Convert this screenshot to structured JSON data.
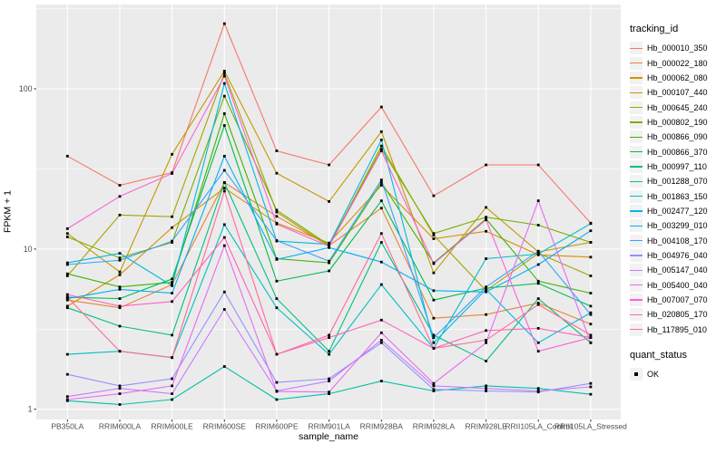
{
  "style": {
    "figure_background": "#FFFFFF",
    "panel_background": "#EBEBEB",
    "gridline_color": "#FFFFFF",
    "axis_text_color": "#4D4D4D",
    "axis_tick_color": "#333333",
    "point_color": "#000000",
    "legend_key_background": "#F2F2F2"
  },
  "chart_data": {
    "type": "line",
    "title": "",
    "xlabel": "sample_name",
    "ylabel": "FPKM + 1",
    "y_scale": "log10",
    "ylim": [
      0.86,
      336
    ],
    "y_ticks": [
      1,
      10,
      100
    ],
    "y_minor_gridlines": [
      3.162,
      31.623,
      316.228
    ],
    "grid": "on",
    "legend_position": "right",
    "point_shape": "filled-square",
    "categories": [
      "PB350LA",
      "RRIM600LA",
      "RRIM600LE",
      "RRIM600SE",
      "RRIM600PE",
      "RRIM901LA",
      "RRIM928BA",
      "RRIM928LA",
      "RRIM928LE",
      "RRII105LA_Control",
      "RRII105LA_Stressed"
    ],
    "series": [
      {
        "name": "Hb_000010_350",
        "color": "#F8766D",
        "values": [
          38,
          25,
          30,
          255,
          41,
          33.5,
          77,
          21.5,
          33.5,
          33.5,
          14.5
        ]
      },
      {
        "name": "Hb_000022_180",
        "color": "#EA8331",
        "values": [
          4.8,
          4.3,
          6.0,
          26,
          16,
          10.5,
          18,
          3.7,
          3.9,
          4.6,
          3.4
        ]
      },
      {
        "name": "Hb_000062_080",
        "color": "#D89000",
        "values": [
          4.4,
          6.9,
          13.6,
          24,
          14.5,
          10.9,
          25,
          11.6,
          12.9,
          9.2,
          8.9
        ]
      },
      {
        "name": "Hb_000107_440",
        "color": "#C09B00",
        "values": [
          12.5,
          7.2,
          39,
          129,
          29.7,
          19.8,
          54,
          7.1,
          18.2,
          9.6,
          11.0
        ]
      },
      {
        "name": "Hb_000645_240",
        "color": "#A3A500",
        "values": [
          6.8,
          16.3,
          15.9,
          125,
          17,
          10.4,
          44,
          12.2,
          5.5,
          9.4,
          6.8
        ]
      },
      {
        "name": "Hb_000802_190",
        "color": "#7CAE00",
        "values": [
          11.9,
          8.8,
          11.0,
          90,
          17.5,
          10.6,
          42,
          12.5,
          15.8,
          14.1,
          11.0
        ]
      },
      {
        "name": "Hb_000866_090",
        "color": "#39B600",
        "values": [
          7.0,
          5.8,
          6.2,
          70,
          8.7,
          8.2,
          26,
          8.2,
          15.4,
          6.3,
          5.3
        ]
      },
      {
        "name": "Hb_000866_370",
        "color": "#00BB4E",
        "values": [
          5.0,
          4.9,
          6.5,
          59,
          6.3,
          7.3,
          20,
          4.8,
          5.7,
          6.1,
          4.4
        ]
      },
      {
        "name": "Hb_000997_110",
        "color": "#00BF7D",
        "values": [
          4.3,
          3.3,
          2.9,
          26,
          4.9,
          2.3,
          11,
          2.9,
          2.0,
          4.9,
          2.6
        ]
      },
      {
        "name": "Hb_001288_070",
        "color": "#00C1A3",
        "values": [
          1.13,
          1.07,
          1.15,
          1.85,
          1.15,
          1.25,
          1.5,
          1.3,
          1.4,
          1.35,
          1.24
        ]
      },
      {
        "name": "Hb_001863_150",
        "color": "#00BFC4",
        "values": [
          2.2,
          2.3,
          2.1,
          14.2,
          4.3,
          2.2,
          6.0,
          2.4,
          8.7,
          9.3,
          14.4
        ]
      },
      {
        "name": "Hb_002477_120",
        "color": "#00BAE0",
        "values": [
          8.2,
          9.4,
          5.9,
          108,
          11.2,
          10.7,
          48,
          2.6,
          5.6,
          2.6,
          4.0
        ]
      },
      {
        "name": "Hb_003299_010",
        "color": "#00B0F6",
        "values": [
          4.9,
          5.6,
          5.3,
          38,
          8.6,
          10.2,
          8.3,
          5.5,
          5.4,
          8.0,
          13.0
        ]
      },
      {
        "name": "Hb_004108_170",
        "color": "#35A2FF",
        "values": [
          8.0,
          8.5,
          11.2,
          31,
          11.3,
          8.4,
          27,
          2.8,
          5.8,
          9.7,
          3.9
        ]
      },
      {
        "name": "Hb_004976_040",
        "color": "#9590FF",
        "values": [
          1.65,
          1.4,
          1.55,
          5.4,
          1.47,
          1.55,
          2.6,
          1.33,
          1.3,
          1.28,
          1.45
        ]
      },
      {
        "name": "Hb_005147_040",
        "color": "#C77CFF",
        "values": [
          1.2,
          1.35,
          1.25,
          4.2,
          1.3,
          1.5,
          2.7,
          1.4,
          1.35,
          1.3,
          1.38
        ]
      },
      {
        "name": "Hb_005400_040",
        "color": "#E76BF3",
        "values": [
          1.15,
          1.25,
          1.4,
          10.5,
          1.29,
          1.28,
          3.0,
          1.45,
          2.6,
          20,
          2.6
        ]
      },
      {
        "name": "Hb_007007_070",
        "color": "#FA62DB",
        "values": [
          13.4,
          21.3,
          29.6,
          120,
          14.3,
          10.4,
          41,
          8.1,
          15.2,
          2.3,
          2.8
        ]
      },
      {
        "name": "Hb_020805_170",
        "color": "#FF62BC",
        "values": [
          5.2,
          4.4,
          4.7,
          11.8,
          2.2,
          2.8,
          3.6,
          2.4,
          3.1,
          3.2,
          2.8
        ]
      },
      {
        "name": "Hb_117895_010",
        "color": "#FF6A98",
        "values": [
          5.0,
          2.3,
          2.1,
          23,
          2.2,
          2.9,
          12.5,
          2.4,
          2.7,
          4.5,
          2.9
        ]
      }
    ],
    "legend": {
      "tracking_title": "tracking_id",
      "quant_title": "quant_status",
      "quant_items": [
        {
          "label": "OK",
          "marker": "black-square"
        }
      ]
    }
  }
}
